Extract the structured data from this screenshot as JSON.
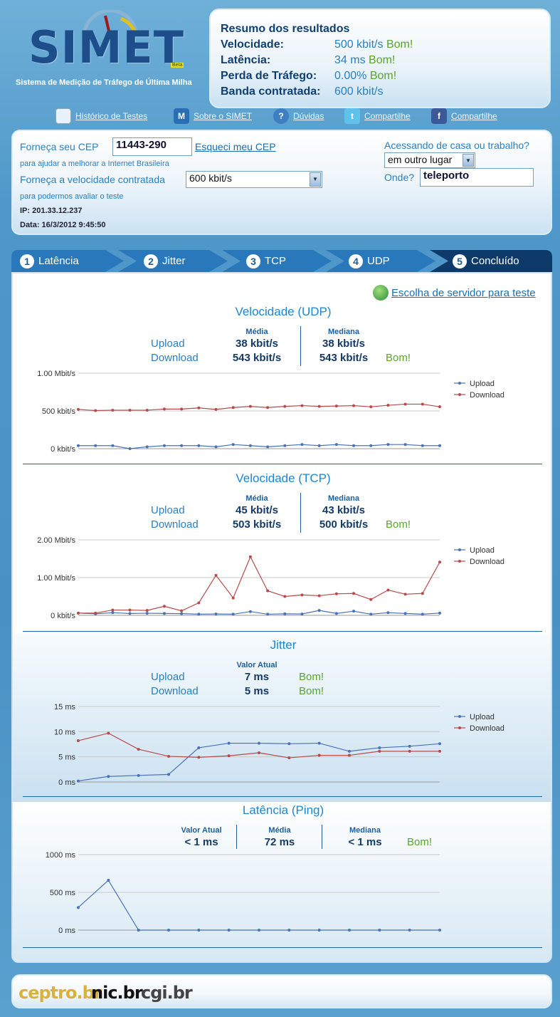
{
  "header": {
    "logo_text": "SIMET",
    "logo_beta": "Beta",
    "logo_subtitle": "Sistema de Medição de Tráfego de Última Milha"
  },
  "summary": {
    "title": "Resumo dos resultados",
    "rows": [
      {
        "label": "Velocidade:",
        "value": "500 kbit/s",
        "status": "Bom!"
      },
      {
        "label": "Latência:",
        "value": "34 ms",
        "status": "Bom!"
      },
      {
        "label": "Perda de Tráfego:",
        "value": "0.00%",
        "status": "Bom!"
      },
      {
        "label": "Banda contratada:",
        "value": "600 kbit/s",
        "status": ""
      }
    ]
  },
  "top_links": [
    {
      "label": "Histórico de Testes",
      "icon": "history-icon"
    },
    {
      "label": "Sobre o SIMET",
      "icon": "simet-icon"
    },
    {
      "label": "Dúvidas",
      "icon": "help-icon"
    },
    {
      "label": "Compartilhe",
      "icon": "twitter-icon"
    },
    {
      "label": "Compartilhe",
      "icon": "facebook-icon"
    }
  ],
  "form": {
    "cep_label": "Forneça seu CEP",
    "cep_value": "11443-290",
    "cep_forgot": "Esqueci meu CEP",
    "cep_help": "para ajudar a melhorar a Internet Brasileira",
    "speed_label": "Forneça a velocidade contratada",
    "speed_value": "600 kbit/s",
    "speed_help": "para podermos avaliar o teste",
    "ip": "IP: 201.33.12.237",
    "date": "Data: 16/3/2012 9:45:50",
    "access_label": "Acessando de casa ou trabalho?",
    "access_value": "em outro lugar",
    "where_label": "Onde?",
    "where_value": "teleporto"
  },
  "steps": [
    {
      "num": "1",
      "label": "Latência"
    },
    {
      "num": "2",
      "label": "Jitter"
    },
    {
      "num": "3",
      "label": "TCP"
    },
    {
      "num": "4",
      "label": "UDP"
    },
    {
      "num": "5",
      "label": "Concluído"
    }
  ],
  "server_link": "Escolha de servidor para teste",
  "udp": {
    "title": "Velocidade (UDP)",
    "col_mean": "Média",
    "col_median": "Mediana",
    "upload_label": "Upload",
    "download_label": "Download",
    "upload_mean": "38 kbit/s",
    "download_mean": "543 kbit/s",
    "upload_median": "38 kbit/s",
    "download_median": "543 kbit/s",
    "status": "Bom!"
  },
  "tcp": {
    "title": "Velocidade (TCP)",
    "col_mean": "Média",
    "col_median": "Mediana",
    "upload_label": "Upload",
    "download_label": "Download",
    "upload_mean": "45 kbit/s",
    "download_mean": "503 kbit/s",
    "upload_median": "43 kbit/s",
    "download_median": "500 kbit/s",
    "status": "Bom!"
  },
  "jitter": {
    "title": "Jitter",
    "col_current": "Valor Atual",
    "upload_label": "Upload",
    "download_label": "Download",
    "upload_value": "7 ms",
    "download_value": "5 ms",
    "upload_status": "Bom!",
    "download_status": "Bom!"
  },
  "latency": {
    "title": "Latência (Ping)",
    "col_current": "Valor Atual",
    "col_mean": "Média",
    "col_median": "Mediana",
    "current": "< 1 ms",
    "mean": "72 ms",
    "median": "< 1 ms",
    "status": "Bom!"
  },
  "footer": {
    "logos": [
      "ceptro.br",
      "nic.br",
      "cgi.br"
    ]
  },
  "colors": {
    "upload": "#4a72b8",
    "download": "#b84a4a",
    "good": "#5aa52a",
    "accent": "#1c86d4"
  },
  "chart_data": [
    {
      "type": "line",
      "yticks": [
        "1.00 Mbit/s",
        "500 kbit/s",
        "0 kbit/s"
      ],
      "ylim": [
        0,
        1000
      ],
      "series": [
        {
          "name": "Upload",
          "values": [
            40,
            40,
            40,
            0,
            25,
            40,
            40,
            40,
            25,
            55,
            40,
            25,
            40,
            55,
            40,
            55,
            40,
            40,
            55,
            55,
            40,
            40
          ]
        },
        {
          "name": "Download",
          "values": [
            520,
            505,
            510,
            510,
            510,
            525,
            525,
            540,
            520,
            545,
            560,
            545,
            560,
            570,
            560,
            565,
            570,
            555,
            575,
            590,
            590,
            555
          ]
        }
      ]
    },
    {
      "type": "line",
      "yticks": [
        "2.00 Mbit/s",
        "1.00 Mbit/s",
        "0 kbit/s"
      ],
      "ylim": [
        0,
        2000
      ],
      "series": [
        {
          "name": "Upload",
          "values": [
            60,
            40,
            70,
            50,
            55,
            50,
            45,
            30,
            35,
            30,
            100,
            30,
            40,
            35,
            130,
            50,
            110,
            30,
            70,
            50,
            30,
            60
          ]
        },
        {
          "name": "Download",
          "values": [
            60,
            60,
            140,
            140,
            130,
            240,
            120,
            330,
            1060,
            460,
            1550,
            650,
            500,
            540,
            520,
            570,
            580,
            420,
            670,
            560,
            580,
            1410
          ]
        }
      ]
    },
    {
      "type": "line",
      "yticks": [
        "15 ms",
        "10 ms",
        "5 ms",
        "0 ms"
      ],
      "ylim": [
        0,
        15
      ],
      "series": [
        {
          "name": "Upload",
          "values": [
            0.2,
            1.1,
            1.3,
            1.5,
            6.8,
            7.7,
            7.7,
            7.6,
            7.7,
            6.1,
            6.8,
            7.1,
            7.6
          ]
        },
        {
          "name": "Download",
          "values": [
            8.2,
            9.7,
            6.5,
            5.1,
            4.9,
            5.2,
            5.8,
            4.8,
            5.3,
            5.3,
            6.1,
            6.1,
            6.1
          ]
        }
      ]
    },
    {
      "type": "line",
      "yticks": [
        "1000 ms",
        "500 ms",
        "0 ms"
      ],
      "ylim": [
        0,
        1000
      ],
      "series": [
        {
          "name": "",
          "values": [
            300,
            660,
            0,
            0,
            0,
            0,
            0,
            0,
            0,
            0,
            0,
            0,
            0
          ]
        }
      ]
    }
  ]
}
